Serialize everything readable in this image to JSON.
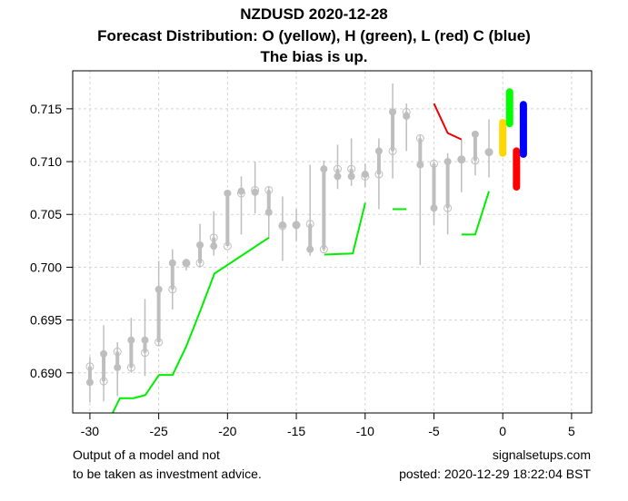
{
  "chart_data": {
    "type": "candlestick",
    "title": [
      "NZDUSD 2020-12-28",
      "Forecast Distribution: O (yellow), H (green), L (red) C (blue)",
      "The bias is up."
    ],
    "xlim": [
      -31.25,
      6.46
    ],
    "ylim": [
      0.6862,
      0.7186
    ],
    "x_ticks": [
      -30,
      -25,
      -20,
      -15,
      -10,
      -5,
      0,
      5
    ],
    "y_ticks": [
      0.69,
      0.695,
      0.7,
      0.705,
      0.71,
      0.715
    ],
    "y_tick_labels": [
      "0.690",
      "0.695",
      "0.700",
      "0.705",
      "0.710",
      "0.715"
    ],
    "grid": true,
    "candle_color": "#bebebe",
    "candles": [
      {
        "x": -30,
        "o": 0.6906,
        "h": 0.6915,
        "l": 0.6872,
        "c": 0.6891
      },
      {
        "x": -29,
        "o": 0.6892,
        "h": 0.6945,
        "l": 0.6873,
        "c": 0.6918
      },
      {
        "x": -28,
        "o": 0.692,
        "h": 0.6929,
        "l": 0.6878,
        "c": 0.6905
      },
      {
        "x": -27,
        "o": 0.6905,
        "h": 0.6952,
        "l": 0.69,
        "c": 0.6931
      },
      {
        "x": -26,
        "o": 0.6919,
        "h": 0.697,
        "l": 0.6897,
        "c": 0.6931
      },
      {
        "x": -25,
        "o": 0.6929,
        "h": 0.7006,
        "l": 0.6925,
        "c": 0.6979
      },
      {
        "x": -24,
        "o": 0.6979,
        "h": 0.7017,
        "l": 0.696,
        "c": 0.7004
      },
      {
        "x": -23,
        "o": 0.7004,
        "h": 0.7008,
        "l": 0.6997,
        "c": 0.7004
      },
      {
        "x": -22,
        "o": 0.7004,
        "h": 0.7041,
        "l": 0.7,
        "c": 0.7021
      },
      {
        "x": -21,
        "o": 0.7028,
        "h": 0.7053,
        "l": 0.7011,
        "c": 0.702
      },
      {
        "x": -20,
        "o": 0.702,
        "h": 0.7072,
        "l": 0.702,
        "c": 0.707
      },
      {
        "x": -19,
        "o": 0.707,
        "h": 0.7086,
        "l": 0.7031,
        "c": 0.7072
      },
      {
        "x": -18,
        "o": 0.7073,
        "h": 0.71,
        "l": 0.7051,
        "c": 0.7071
      },
      {
        "x": -17,
        "o": 0.7073,
        "h": 0.7076,
        "l": 0.7027,
        "c": 0.7052
      },
      {
        "x": -16,
        "o": 0.7039,
        "h": 0.7067,
        "l": 0.7006,
        "c": 0.704
      },
      {
        "x": -15,
        "o": 0.704,
        "h": 0.7055,
        "l": 0.7025,
        "c": 0.704
      },
      {
        "x": -14,
        "o": 0.7041,
        "h": 0.7097,
        "l": 0.7011,
        "c": 0.7017
      },
      {
        "x": -13,
        "o": 0.7017,
        "h": 0.7101,
        "l": 0.7015,
        "c": 0.7093
      },
      {
        "x": -12,
        "o": 0.7093,
        "h": 0.7116,
        "l": 0.7074,
        "c": 0.7086
      },
      {
        "x": -11,
        "o": 0.7093,
        "h": 0.7122,
        "l": 0.7077,
        "c": 0.7086
      },
      {
        "x": -10,
        "o": 0.7086,
        "h": 0.7098,
        "l": 0.7076,
        "c": 0.7088
      },
      {
        "x": -9,
        "o": 0.7088,
        "h": 0.7122,
        "l": 0.7055,
        "c": 0.711
      },
      {
        "x": -8,
        "o": 0.711,
        "h": 0.7174,
        "l": 0.7084,
        "c": 0.7147
      },
      {
        "x": -7,
        "o": 0.7147,
        "h": 0.7155,
        "l": 0.711,
        "c": 0.7143
      },
      {
        "x": -6,
        "o": 0.7122,
        "h": 0.7125,
        "l": 0.7002,
        "c": 0.7097
      },
      {
        "x": -5,
        "o": 0.7098,
        "h": 0.71,
        "l": 0.704,
        "c": 0.7056
      },
      {
        "x": -4,
        "o": 0.7056,
        "h": 0.7108,
        "l": 0.7031,
        "c": 0.71
      },
      {
        "x": -3,
        "o": 0.7102,
        "h": 0.7121,
        "l": 0.7071,
        "c": 0.7102
      },
      {
        "x": -2,
        "o": 0.7101,
        "h": 0.7126,
        "l": 0.7087,
        "c": 0.7126
      },
      {
        "x": -1,
        "o": 0.7109,
        "h": 0.714,
        "l": 0.7085,
        "c": 0.7109
      }
    ],
    "green_line": [
      [
        [
          -28.35,
          0.6862
        ],
        [
          -27.82,
          0.6876
        ],
        [
          -26.83,
          0.6876
        ],
        [
          -25.97,
          0.6879
        ],
        [
          -24.98,
          0.6898
        ],
        [
          -23.99,
          0.6898
        ],
        [
          -23.0,
          0.6925
        ],
        [
          -22.0,
          0.6958
        ],
        [
          -20.95,
          0.6994
        ],
        [
          -16.99,
          0.7028
        ]
      ],
      [
        [
          -12.96,
          0.7012
        ],
        [
          -10.9,
          0.7013
        ],
        [
          -9.99,
          0.7061
        ]
      ],
      [
        [
          -8.0,
          0.7055
        ],
        [
          -7.0,
          0.7055
        ]
      ],
      [
        [
          -3.0,
          0.7031
        ],
        [
          -2.0,
          0.7031
        ],
        [
          -1.0,
          0.7072
        ]
      ]
    ],
    "green_color": "#00ee00",
    "red_line": [
      [
        -5,
        0.7155
      ],
      [
        -4,
        0.7127
      ],
      [
        -3,
        0.7121
      ]
    ],
    "red_color": "#ee0000",
    "forecast": [
      {
        "name": "O",
        "x": 0.0,
        "low": 0.7108,
        "high": 0.7137,
        "color": "#ffd700"
      },
      {
        "name": "H",
        "x": 0.5,
        "low": 0.7136,
        "high": 0.7166,
        "color": "#00ff00"
      },
      {
        "name": "L",
        "x": 1.0,
        "low": 0.7076,
        "high": 0.711,
        "color": "#ff0000"
      },
      {
        "name": "C",
        "x": 1.5,
        "low": 0.7107,
        "high": 0.7154,
        "color": "#0000ff"
      }
    ]
  },
  "footer": {
    "disclaimer_line1": "Output of a model and not",
    "disclaimer_line2": "to be taken as investment advice.",
    "site": "signalsetups.com",
    "posted": "posted: 2020-12-29 18:22:04 BST"
  }
}
